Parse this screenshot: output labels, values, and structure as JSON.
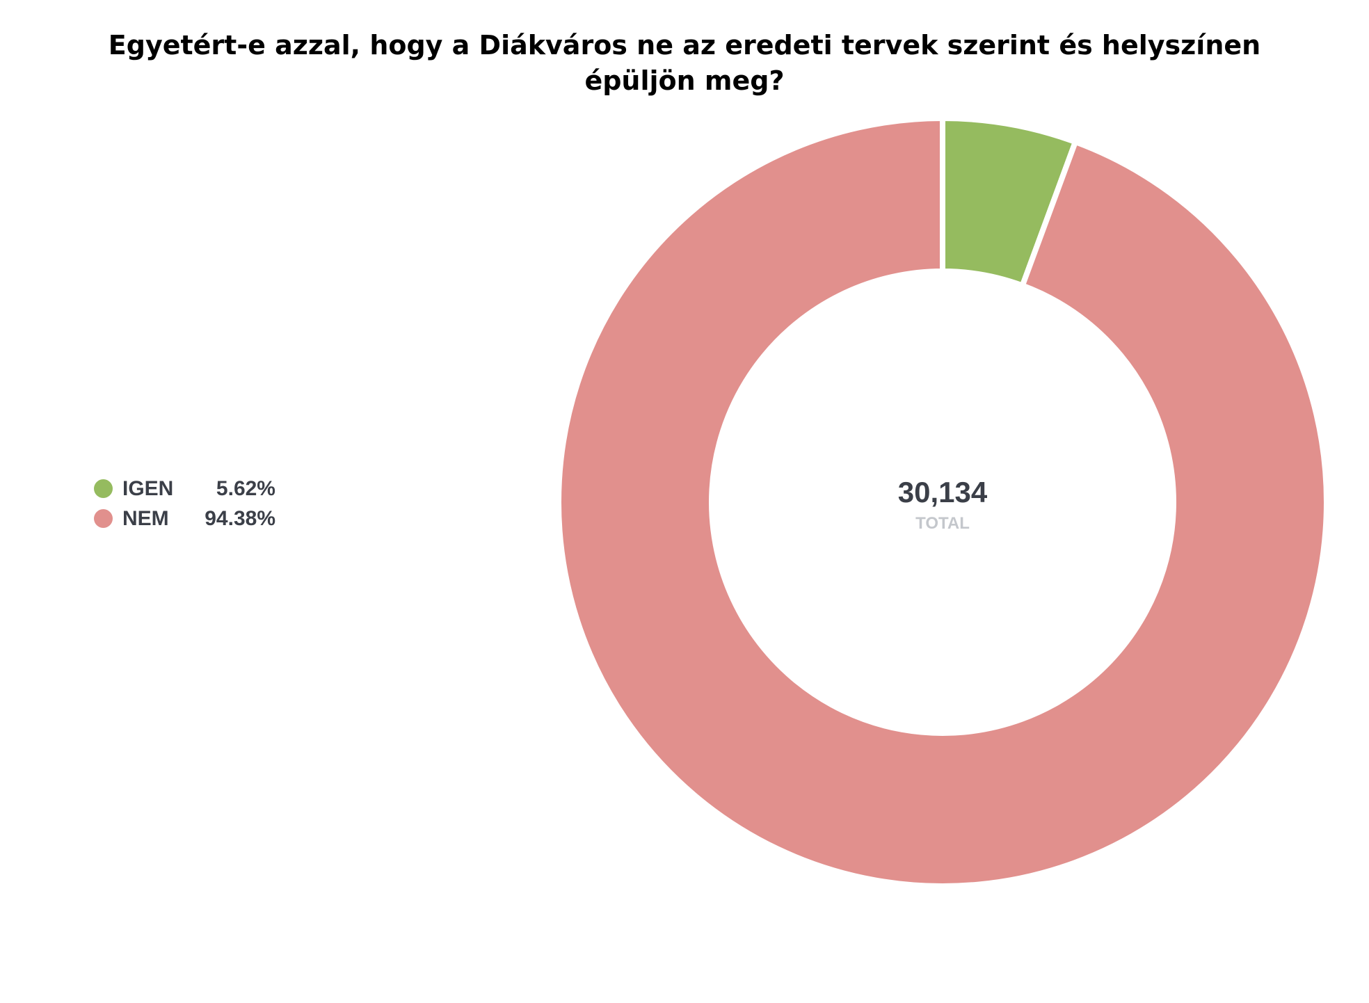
{
  "chart_data": {
    "type": "pie",
    "title": "Egyetért-e azzal, hogy a Diákváros ne az eredeti tervek szerint és helyszínen épüljön meg?",
    "categories": [
      "IGEN",
      "NEM"
    ],
    "values": [
      5.62,
      94.38
    ],
    "value_labels": [
      "5.62%",
      "94.38%"
    ],
    "colors": [
      "#95bb5f",
      "#e1908d"
    ],
    "center_value": "30,134",
    "center_label": "TOTAL",
    "legend_position": "left"
  }
}
